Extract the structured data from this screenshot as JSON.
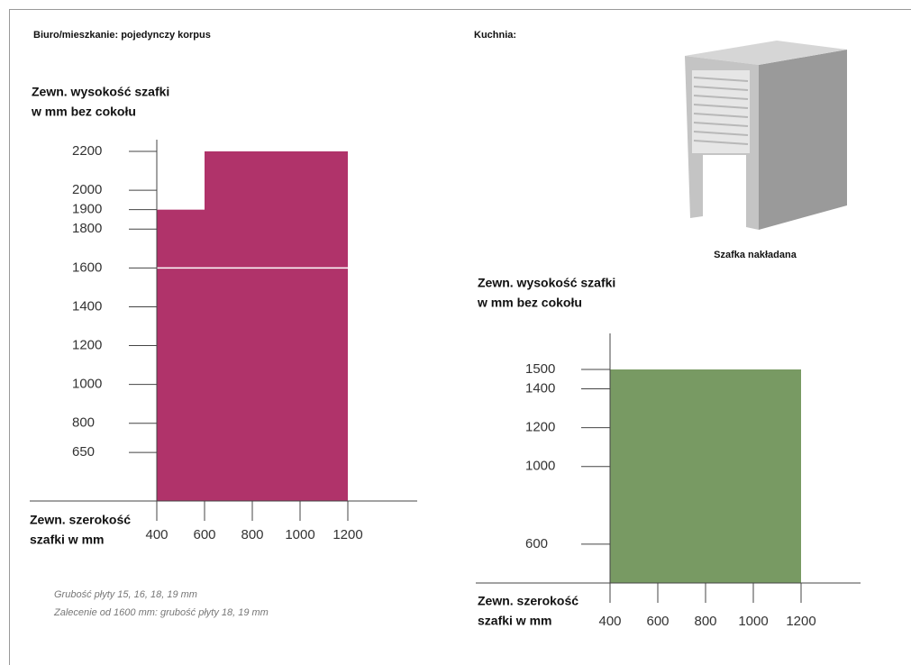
{
  "page": {
    "left_heading": "Biuro/mieszkanie: pojedynczy korpus",
    "right_heading": "Kuchnia:",
    "image_caption": "Szafka nakładana",
    "notes": [
      "Grubość płyty 15, 16, 18, 19 mm",
      "Zalecenie od 1600 mm: grubość płyty 18, 19 mm"
    ]
  },
  "chart_data": [
    {
      "type": "bar",
      "y_label": [
        "Zewn. wysokość szafki",
        "w mm bez cokołu"
      ],
      "x_label": [
        "Zewn. szerokość",
        "szafki w mm"
      ],
      "xranges": [
        [
          400,
          600
        ],
        [
          600,
          1200
        ]
      ],
      "values": [
        1900,
        2200
      ],
      "color": "#b0336a",
      "reference_line": 1600,
      "xlim": [
        400,
        1200
      ],
      "xticks": [
        400,
        600,
        800,
        1000,
        1200
      ],
      "ylim": [
        400,
        2200
      ],
      "yticks": [
        650,
        800,
        1000,
        1200,
        1400,
        1600,
        1800,
        1900,
        2000,
        2200
      ]
    },
    {
      "type": "bar",
      "y_label": [
        "Zewn. wysokość szafki",
        "w mm bez cokołu"
      ],
      "x_label": [
        "Zewn. szerokość",
        "szafki w mm"
      ],
      "xranges": [
        [
          400,
          1200
        ]
      ],
      "values": [
        1500
      ],
      "color": "#789a63",
      "xlim": [
        400,
        1200
      ],
      "xticks": [
        400,
        600,
        800,
        1000,
        1200
      ],
      "ylim": [
        400,
        1500
      ],
      "yticks": [
        600,
        1000,
        1200,
        1400,
        1500
      ]
    }
  ]
}
